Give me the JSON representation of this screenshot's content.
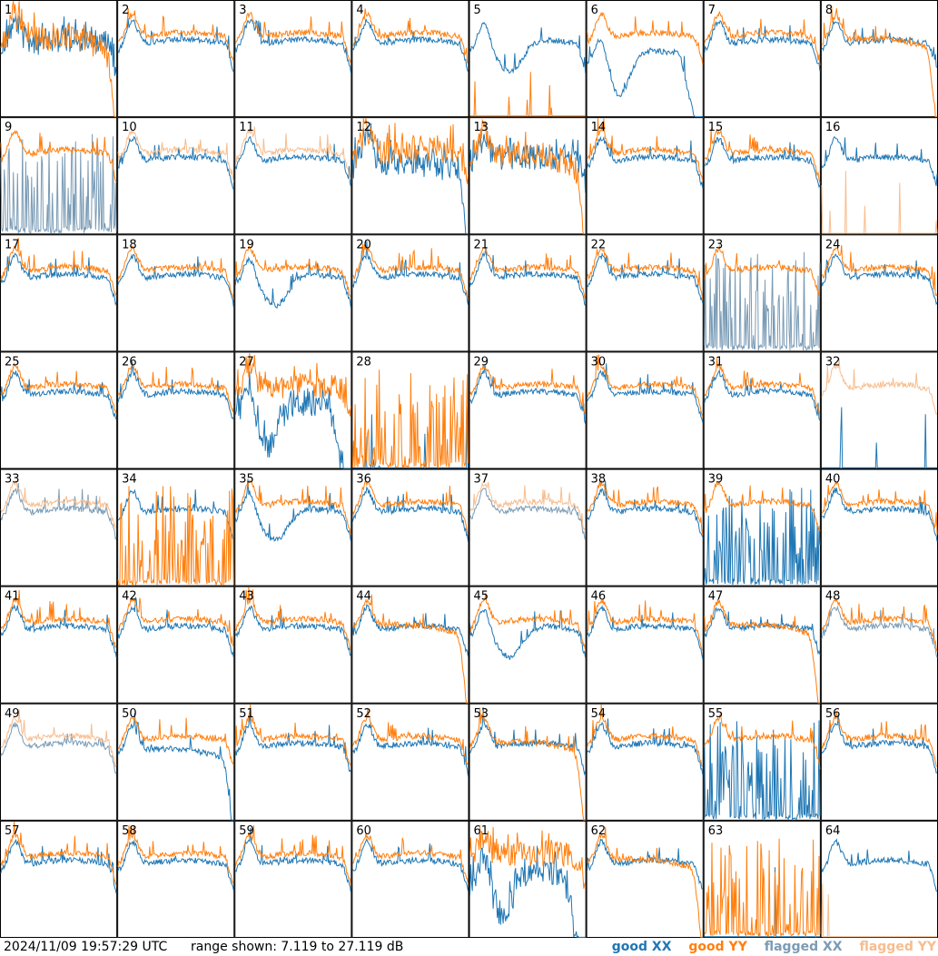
{
  "chart_data": {
    "type": "line",
    "layout": "8x8 small multiples",
    "panel_labels": [
      "1",
      "2",
      "3",
      "4",
      "5",
      "6",
      "7",
      "8",
      "9",
      "10",
      "11",
      "12",
      "13",
      "14",
      "15",
      "16",
      "17",
      "18",
      "19",
      "20",
      "21",
      "22",
      "23",
      "24",
      "25",
      "26",
      "27",
      "28",
      "29",
      "30",
      "31",
      "32",
      "33",
      "34",
      "35",
      "36",
      "37",
      "38",
      "39",
      "40",
      "41",
      "42",
      "43",
      "44",
      "45",
      "46",
      "47",
      "48",
      "49",
      "50",
      "51",
      "52",
      "53",
      "54",
      "55",
      "56",
      "57",
      "58",
      "59",
      "60",
      "61",
      "62",
      "63",
      "64"
    ],
    "ylim": [
      7.119,
      27.119
    ],
    "yunit": "dB",
    "colors": {
      "good_xx": "#1f77b4",
      "good_yy": "#ff7f0e",
      "flagged_xx": "#7a9bb5",
      "flagged_yy": "#f7bd8e"
    },
    "panels": {
      "1": {
        "xx": "good",
        "yy": "good",
        "yy_shape": "rolloff",
        "noisy": true
      },
      "2": {
        "xx": "good",
        "yy": "good"
      },
      "3": {
        "xx": "good",
        "yy": "good"
      },
      "4": {
        "xx": "good",
        "yy": "good"
      },
      "5": {
        "xx": "good",
        "yy": "good",
        "xx_shape": "dip",
        "yy_shape": "low"
      },
      "6": {
        "xx": "good",
        "yy": "good",
        "xx_shape": "dip_rolloff"
      },
      "7": {
        "xx": "good",
        "yy": "good"
      },
      "8": {
        "xx": "good",
        "yy": "good",
        "yy_shape": "rolloff"
      },
      "9": {
        "xx": "flagged",
        "yy": "good",
        "xx_shape": "spikes"
      },
      "10": {
        "xx": "good",
        "yy": "flagged"
      },
      "11": {
        "xx": "good",
        "yy": "flagged"
      },
      "12": {
        "xx": "good",
        "yy": "good",
        "xx_shape": "rolloff",
        "noisy": true
      },
      "13": {
        "xx": "good",
        "yy": "good",
        "yy_shape": "rolloff",
        "noisy": true
      },
      "14": {
        "xx": "good",
        "yy": "good"
      },
      "15": {
        "xx": "good",
        "yy": "good"
      },
      "16": {
        "xx": "good",
        "yy": "flagged",
        "yy_shape": "low"
      },
      "17": {
        "xx": "good",
        "yy": "good"
      },
      "18": {
        "xx": "good",
        "yy": "good"
      },
      "19": {
        "xx": "good",
        "yy": "good",
        "xx_shape": "dip"
      },
      "20": {
        "xx": "good",
        "yy": "good"
      },
      "21": {
        "xx": "good",
        "yy": "good"
      },
      "22": {
        "xx": "good",
        "yy": "good"
      },
      "23": {
        "xx": "flagged",
        "yy": "good",
        "xx_shape": "spikes"
      },
      "24": {
        "xx": "good",
        "yy": "good"
      },
      "25": {
        "xx": "good",
        "yy": "good"
      },
      "26": {
        "xx": "good",
        "yy": "good"
      },
      "27": {
        "xx": "good",
        "yy": "good",
        "xx_shape": "dip_rolloff",
        "noisy": true
      },
      "28": {
        "xx": "good",
        "yy": "good",
        "yy_shape": "spikes",
        "xx_shape": "low"
      },
      "29": {
        "xx": "good",
        "yy": "good"
      },
      "30": {
        "xx": "good",
        "yy": "good"
      },
      "31": {
        "xx": "good",
        "yy": "good"
      },
      "32": {
        "xx": "good",
        "yy": "flagged",
        "xx_shape": "low"
      },
      "33": {
        "xx": "flagged",
        "yy": "flagged"
      },
      "34": {
        "xx": "good",
        "yy": "good",
        "yy_shape": "spikes"
      },
      "35": {
        "xx": "good",
        "yy": "good",
        "xx_shape": "dip"
      },
      "36": {
        "xx": "good",
        "yy": "good"
      },
      "37": {
        "xx": "flagged",
        "yy": "flagged"
      },
      "38": {
        "xx": "good",
        "yy": "good"
      },
      "39": {
        "xx": "good",
        "yy": "good",
        "xx_shape": "spikes"
      },
      "40": {
        "xx": "good",
        "yy": "good"
      },
      "41": {
        "xx": "good",
        "yy": "good"
      },
      "42": {
        "xx": "good",
        "yy": "good"
      },
      "43": {
        "xx": "good",
        "yy": "good"
      },
      "44": {
        "xx": "good",
        "yy": "good",
        "yy_shape": "rolloff"
      },
      "45": {
        "xx": "good",
        "yy": "good",
        "xx_shape": "dip"
      },
      "46": {
        "xx": "good",
        "yy": "good"
      },
      "47": {
        "xx": "good",
        "yy": "good",
        "yy_shape": "rolloff"
      },
      "48": {
        "xx": "flagged",
        "yy": "good"
      },
      "49": {
        "xx": "flagged",
        "yy": "flagged"
      },
      "50": {
        "xx": "good",
        "yy": "good",
        "xx_shape": "rolloff"
      },
      "51": {
        "xx": "good",
        "yy": "good"
      },
      "52": {
        "xx": "good",
        "yy": "good"
      },
      "53": {
        "xx": "good",
        "yy": "good",
        "yy_shape": "rolloff"
      },
      "54": {
        "xx": "good",
        "yy": "good"
      },
      "55": {
        "xx": "good",
        "yy": "good",
        "xx_shape": "spikes"
      },
      "56": {
        "xx": "good",
        "yy": "good"
      },
      "57": {
        "xx": "good",
        "yy": "good"
      },
      "58": {
        "xx": "good",
        "yy": "good"
      },
      "59": {
        "xx": "good",
        "yy": "good"
      },
      "60": {
        "xx": "good",
        "yy": "good"
      },
      "61": {
        "xx": "good",
        "yy": "good",
        "xx_shape": "dip_rolloff",
        "noisy": true
      },
      "62": {
        "xx": "good",
        "yy": "good",
        "yy_shape": "rolloff"
      },
      "63": {
        "xx": "good",
        "yy": "good",
        "yy_shape": "spikes",
        "xx_shape": "low"
      },
      "64": {
        "xx": "good",
        "yy": "flagged",
        "yy_shape": "low"
      }
    }
  },
  "footer": {
    "timestamp": "2024/11/09 19:57:29 UTC",
    "range": "range shown: 7.119 to 27.119 dB",
    "legend": {
      "good_xx": "good XX",
      "good_yy": "good YY",
      "flagged_xx": "flagged XX",
      "flagged_yy": "flagged YY"
    }
  }
}
